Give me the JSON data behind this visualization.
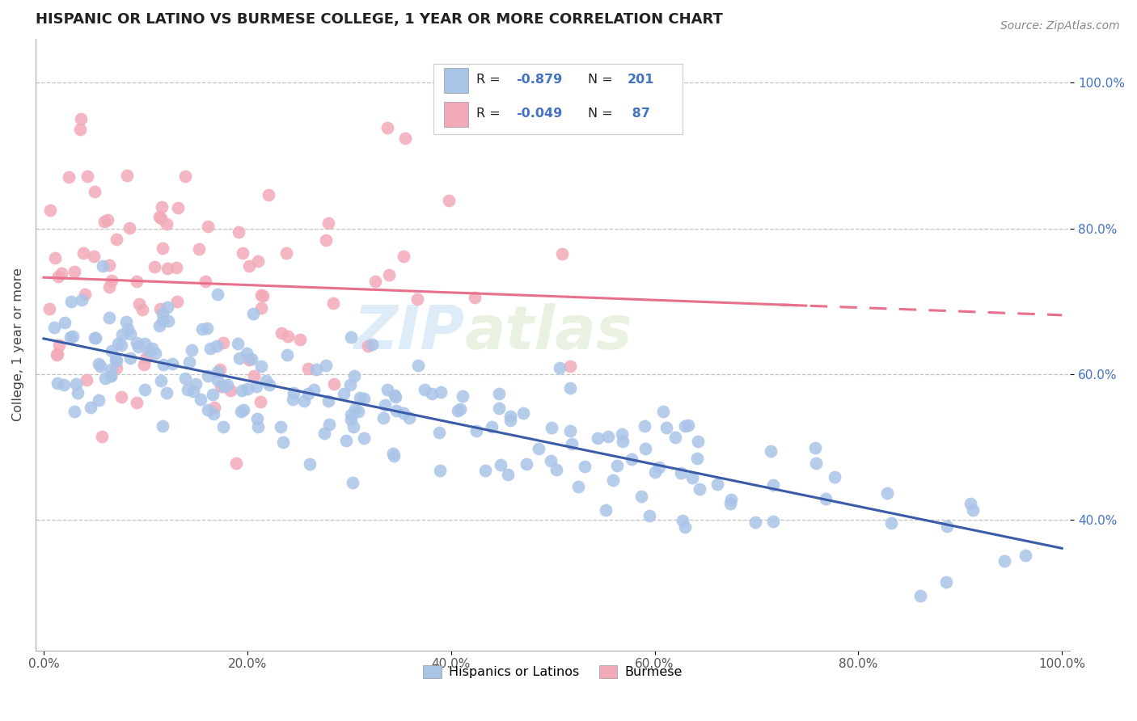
{
  "title": "HISPANIC OR LATINO VS BURMESE COLLEGE, 1 YEAR OR MORE CORRELATION CHART",
  "source_text": "Source: ZipAtlas.com",
  "ylabel": "College, 1 year or more",
  "blue_color": "#aac4e8",
  "pink_color": "#f2aab8",
  "blue_line_color": "#3a5ca8",
  "pink_line_color": "#e8708a",
  "label_color": "#4472c4",
  "R_blue": "-0.879",
  "N_blue": "201",
  "R_pink": "-0.049",
  "N_pink": " 87",
  "watermark_zip": "ZIP",
  "watermark_atlas": "atlas",
  "legend_label_blue": "Hispanics or Latinos",
  "legend_label_pink": "Burmese",
  "title_fontsize": 13,
  "tick_fontsize": 11
}
